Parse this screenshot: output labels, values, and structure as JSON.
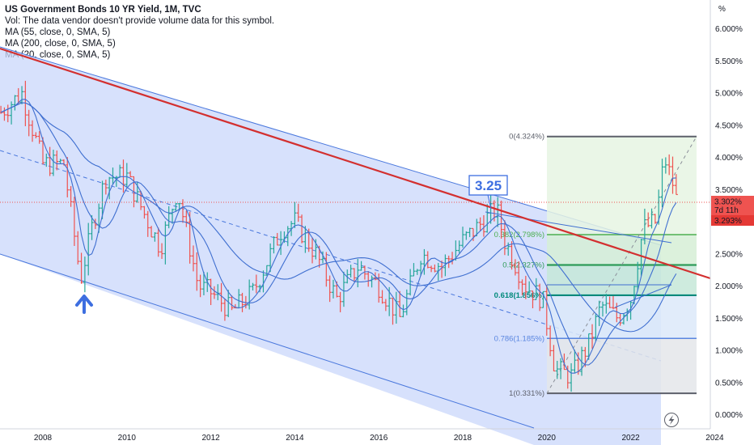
{
  "header": {
    "title": "US Government Bonds 10 YR Yield, 1M, TVC",
    "volume_note": "Vol: The data vendor doesn't provide volume data for this symbol.",
    "ma_lines": [
      "MA (55, close, 0, SMA, 5)",
      "MA (200, close, 0, SMA, 5)",
      "MA (20, close, 0, SMA, 5)"
    ]
  },
  "price_axis": {
    "unit_label": "%",
    "labels": [
      "6.000%",
      "5.500%",
      "5.000%",
      "4.500%",
      "4.000%",
      "3.500%",
      "3.000%",
      "2.500%",
      "2.000%",
      "1.500%",
      "1.000%",
      "0.500%",
      "0.000%"
    ],
    "current_price": "3.302%",
    "countdown": "7d 11h",
    "ma_value": "3.293%"
  },
  "time_axis": {
    "labels": [
      "2008",
      "2010",
      "2012",
      "2014",
      "2016",
      "2018",
      "2020",
      "2022",
      "2024"
    ]
  },
  "annotation": {
    "callout": "3.25"
  },
  "colors": {
    "up": "#26a69a",
    "down": "#ef5350",
    "trendline": "#d32f2f",
    "ma": "#3f6fd0",
    "channel_fill": "#c9d7fb",
    "arrow": "#3d6ee0"
  },
  "fib": [
    {
      "label": "0(4.324%)",
      "value": 4.324,
      "color": "#5d606b"
    },
    {
      "label": "0.382(2.798%)",
      "value": 2.798,
      "color": "#4caf50"
    },
    {
      "label": "0.5(2.327%)",
      "value": 2.327,
      "color": "#2e9b58"
    },
    {
      "label": "0.618(1.856%)",
      "value": 1.856,
      "color": "#00897b"
    },
    {
      "label": "0.786(1.185%)",
      "value": 1.185,
      "color": "#5a86e0"
    },
    {
      "label": "1(0.331%)",
      "value": 0.331,
      "color": "#5d606b"
    }
  ],
  "chart_data": {
    "type": "line",
    "ylim": [
      0,
      6.3
    ],
    "xlim": [
      2006.8,
      2024.2
    ],
    "series": [
      {
        "values": [
          [
            2007.0,
            4.7
          ],
          [
            2007.5,
            5.0
          ],
          [
            2008.0,
            3.9
          ],
          [
            2008.5,
            3.9
          ],
          [
            2008.9,
            2.1
          ],
          [
            2009.2,
            3.0
          ],
          [
            2009.5,
            3.7
          ],
          [
            2010.0,
            3.7
          ],
          [
            2010.5,
            3.0
          ],
          [
            2010.8,
            2.6
          ],
          [
            2011.2,
            3.5
          ],
          [
            2011.7,
            2.0
          ],
          [
            2012.0,
            1.9
          ],
          [
            2012.5,
            1.6
          ],
          [
            2013.0,
            1.9
          ],
          [
            2013.7,
            2.9
          ],
          [
            2014.0,
            3.0
          ],
          [
            2014.5,
            2.5
          ],
          [
            2015.0,
            1.8
          ],
          [
            2015.5,
            2.3
          ],
          [
            2016.0,
            2.0
          ],
          [
            2016.5,
            1.5
          ],
          [
            2017.0,
            2.5
          ],
          [
            2017.5,
            2.3
          ],
          [
            2018.0,
            2.7
          ],
          [
            2018.8,
            3.2
          ],
          [
            2019.0,
            2.7
          ],
          [
            2019.5,
            2.0
          ],
          [
            2019.9,
            1.8
          ],
          [
            2020.2,
            0.7
          ],
          [
            2020.6,
            0.6
          ],
          [
            2021.0,
            1.1
          ],
          [
            2021.3,
            1.7
          ],
          [
            2021.7,
            1.5
          ],
          [
            2022.0,
            1.8
          ],
          [
            2022.3,
            2.9
          ],
          [
            2022.6,
            3.0
          ],
          [
            2022.8,
            4.0
          ],
          [
            2023.0,
            3.6
          ],
          [
            2023.1,
            3.3
          ]
        ]
      }
    ],
    "annotations": [
      "3.25"
    ]
  }
}
